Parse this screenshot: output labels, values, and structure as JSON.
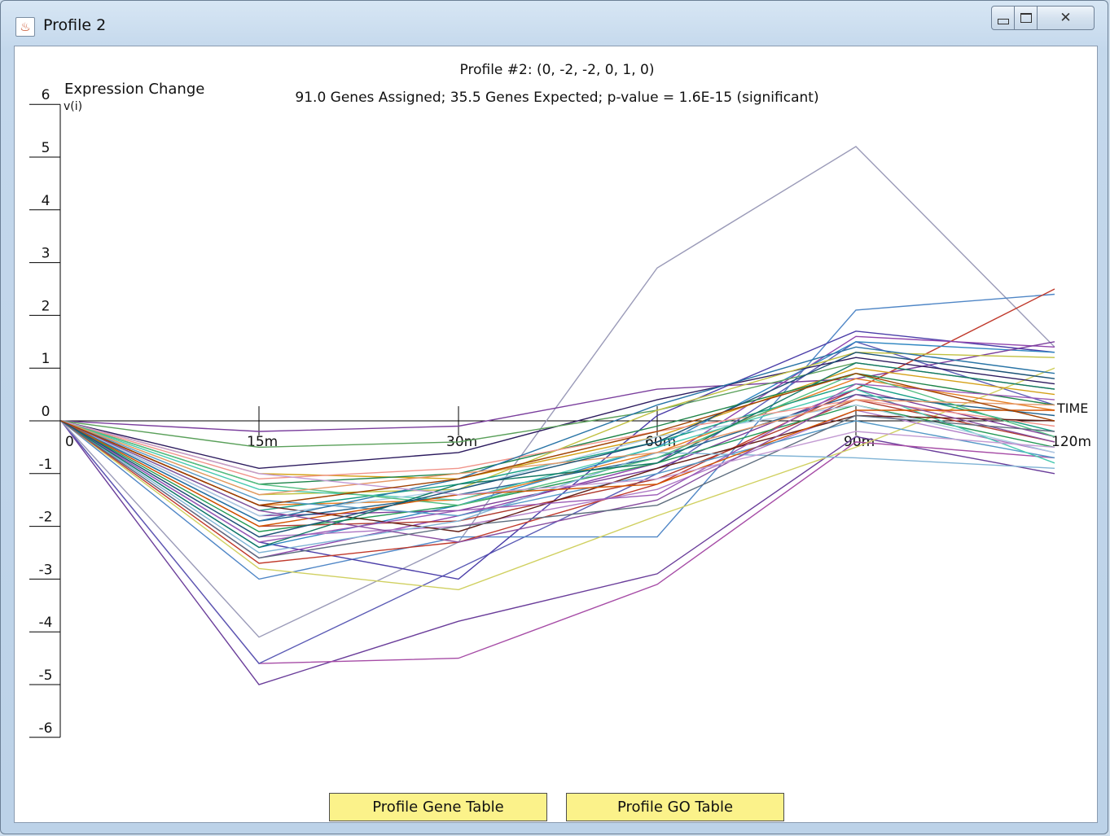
{
  "window": {
    "title": "Profile 2",
    "controls": {
      "minimize": "minimize-icon",
      "maximize": "maximize-icon",
      "close": "close-icon"
    }
  },
  "buttons": {
    "gene_table": "Profile Gene Table",
    "go_table": "Profile GO Table"
  },
  "chart_data": {
    "type": "line",
    "title": "Profile #2: (0, -2, -2, 0, 1, 0)",
    "subtitle": "91.0 Genes Assigned; 35.5 Genes Expected; p-value = 1.6E-15 (significant)",
    "ylabel": "Expression Change",
    "ylabel2": "v(i)",
    "xlabel": "TIME",
    "categories": [
      "0",
      "15m",
      "30m",
      "60m",
      "90m",
      "120m"
    ],
    "ylim": [
      -6,
      6
    ],
    "yticks": [
      "6",
      "5",
      "4",
      "3",
      "2",
      "1",
      "0",
      "-1",
      "-2",
      "-3",
      "-4",
      "-5",
      "-6"
    ],
    "series": [
      {
        "color": "#6a3d9a",
        "values": [
          0,
          -5.0,
          -3.8,
          -2.9,
          -0.3,
          -1.0
        ]
      },
      {
        "color": "#a64ca6",
        "values": [
          0,
          -4.6,
          -4.5,
          -3.1,
          -0.4,
          -0.7
        ]
      },
      {
        "color": "#5b5bb5",
        "values": [
          0,
          -4.6,
          -2.8,
          -1.0,
          1.5,
          0.3
        ]
      },
      {
        "color": "#9a9ab8",
        "values": [
          0,
          -4.1,
          -2.3,
          2.9,
          5.2,
          1.4
        ]
      },
      {
        "color": "#4f86c6",
        "values": [
          0,
          -3.0,
          -2.2,
          -2.2,
          2.1,
          2.4
        ]
      },
      {
        "color": "#d0d060",
        "values": [
          0,
          -2.8,
          -3.2,
          -1.8,
          -0.5,
          1.0
        ]
      },
      {
        "color": "#4a3da8",
        "values": [
          0,
          -2.3,
          -3.0,
          0.1,
          1.7,
          1.3
        ]
      },
      {
        "color": "#c0392b",
        "values": [
          0,
          -2.7,
          -2.3,
          -1.2,
          0.6,
          2.5
        ]
      },
      {
        "color": "#8e44ad",
        "values": [
          0,
          -2.6,
          -1.8,
          -0.8,
          1.6,
          1.4
        ]
      },
      {
        "color": "#2e86c1",
        "values": [
          0,
          -2.4,
          -1.6,
          -0.5,
          1.5,
          1.3
        ]
      },
      {
        "color": "#7a3e9d",
        "values": [
          0,
          -0.2,
          -0.1,
          0.6,
          0.8,
          1.5
        ]
      },
      {
        "color": "#2c1b5e",
        "values": [
          0,
          -0.9,
          -0.6,
          0.4,
          1.2,
          0.7
        ]
      },
      {
        "color": "#5aa05a",
        "values": [
          0,
          -0.5,
          -0.4,
          0.2,
          1.1,
          0.6
        ]
      },
      {
        "color": "#d4a017",
        "values": [
          0,
          -1.0,
          -1.1,
          -0.3,
          1.0,
          0.5
        ]
      },
      {
        "color": "#1e8449",
        "values": [
          0,
          -1.2,
          -1.0,
          -0.1,
          0.9,
          0.3
        ]
      },
      {
        "color": "#c0c040",
        "values": [
          0,
          -1.4,
          -1.3,
          0.2,
          1.3,
          1.2
        ]
      },
      {
        "color": "#e67e22",
        "values": [
          0,
          -1.6,
          -1.5,
          -0.6,
          0.8,
          0.2
        ]
      },
      {
        "color": "#16a085",
        "values": [
          0,
          -1.7,
          -1.2,
          -0.4,
          0.7,
          -0.2
        ]
      },
      {
        "color": "#7d3c98",
        "values": [
          0,
          -1.8,
          -1.7,
          -0.9,
          0.6,
          -0.3
        ]
      },
      {
        "color": "#1f618d",
        "values": [
          0,
          -1.9,
          -1.4,
          -0.7,
          0.5,
          0.1
        ]
      },
      {
        "color": "#b03a2e",
        "values": [
          0,
          -2.0,
          -1.9,
          -1.1,
          0.4,
          -0.4
        ]
      },
      {
        "color": "#229954",
        "values": [
          0,
          -2.1,
          -1.6,
          -0.8,
          0.3,
          -0.5
        ]
      },
      {
        "color": "#af7ac5",
        "values": [
          0,
          -2.2,
          -2.0,
          -1.3,
          0.2,
          -0.6
        ]
      },
      {
        "color": "#5499c7",
        "values": [
          0,
          -1.5,
          -1.8,
          -1.0,
          0.0,
          -0.7
        ]
      },
      {
        "color": "#48c9b0",
        "values": [
          0,
          -1.3,
          -1.5,
          -0.5,
          0.6,
          -0.8
        ]
      },
      {
        "color": "#f1948a",
        "values": [
          0,
          -1.1,
          -0.9,
          -0.2,
          0.4,
          -0.1
        ]
      },
      {
        "color": "#641e16",
        "values": [
          0,
          -1.6,
          -2.1,
          -0.9,
          0.1,
          0.0
        ]
      },
      {
        "color": "#7fb3d5",
        "values": [
          0,
          -2.5,
          -1.9,
          -0.6,
          -0.7,
          -0.9
        ]
      },
      {
        "color": "#a9cce3",
        "values": [
          0,
          -1.8,
          -1.3,
          -0.3,
          0.3,
          -0.6
        ]
      },
      {
        "color": "#9b59b6",
        "values": [
          0,
          -2.3,
          -1.7,
          -1.4,
          0.7,
          0.4
        ]
      },
      {
        "color": "#2874a6",
        "values": [
          0,
          -1.9,
          -1.1,
          0.3,
          1.4,
          0.9
        ]
      },
      {
        "color": "#52be80",
        "values": [
          0,
          -1.2,
          -1.6,
          -0.7,
          0.9,
          -0.3
        ]
      },
      {
        "color": "#d35400",
        "values": [
          0,
          -2.0,
          -1.4,
          -1.2,
          0.2,
          0.2
        ]
      },
      {
        "color": "#884ea0",
        "values": [
          0,
          -1.7,
          -2.3,
          -1.5,
          0.5,
          -0.4
        ]
      },
      {
        "color": "#117864",
        "values": [
          0,
          -2.4,
          -1.2,
          -0.8,
          1.1,
          0.6
        ]
      },
      {
        "color": "#e59866",
        "values": [
          0,
          -1.4,
          -1.0,
          -0.6,
          0.4,
          0.3
        ]
      },
      {
        "color": "#5d6d7e",
        "values": [
          0,
          -2.6,
          -2.0,
          -1.6,
          0.1,
          -0.2
        ]
      },
      {
        "color": "#c39bd3",
        "values": [
          0,
          -1.0,
          -1.4,
          -1.1,
          -0.2,
          -0.5
        ]
      },
      {
        "color": "#1a5276",
        "values": [
          0,
          -2.2,
          -1.3,
          -0.4,
          1.3,
          0.8
        ]
      },
      {
        "color": "#a04000",
        "values": [
          0,
          -1.6,
          -1.1,
          -0.2,
          0.9,
          0.0
        ]
      }
    ]
  }
}
